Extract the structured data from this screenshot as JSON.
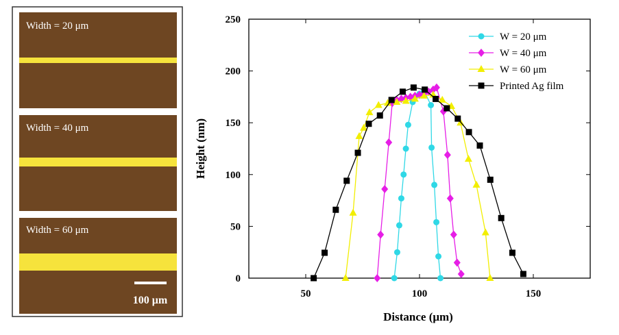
{
  "micrographs": [
    {
      "label": "Width = 20 μm"
    },
    {
      "label": "Width = 40 μm"
    },
    {
      "label": "Width = 60 μm"
    }
  ],
  "scale_bar_label": "100 μm",
  "chart_data": {
    "type": "line",
    "x_label": "Distance (μm)",
    "y_label": "Height (nm)",
    "xlim": [
      25,
      175
    ],
    "xticks": [
      50,
      100,
      150
    ],
    "ylim": [
      0,
      250
    ],
    "yticks": [
      0,
      50,
      100,
      150,
      200,
      250
    ],
    "legend": "upper right",
    "series": [
      {
        "name": "W = 20 μm",
        "color": "#2fd8e6",
        "marker": "circle",
        "x": [
          88.9,
          90.2,
          91.1,
          92,
          93,
          94,
          95,
          97,
          98,
          100,
          102,
          105,
          105.3,
          106.5,
          107.4,
          108.3,
          109.2
        ],
        "values": [
          0,
          25,
          51,
          77,
          100,
          125,
          148,
          170,
          175,
          178,
          181,
          167,
          126,
          90,
          54,
          21,
          0
        ]
      },
      {
        "name": "W = 40 μm",
        "color": "#e61ee6",
        "marker": "diamond",
        "x": [
          81.4,
          82.9,
          84.7,
          86.5,
          88,
          90,
          92,
          94,
          96,
          98,
          100,
          102,
          104,
          106,
          107.5,
          110.5,
          112.3,
          113.5,
          115,
          116.5,
          118.3
        ],
        "values": [
          0,
          42,
          86,
          131,
          169,
          172,
          173,
          174,
          175,
          176,
          177,
          178,
          180,
          182,
          184,
          161,
          119,
          77,
          42,
          15,
          4
        ]
      },
      {
        "name": "W = 60 μm",
        "color": "#f2ee00",
        "marker": "triangle",
        "x": [
          67.5,
          70.8,
          73.5,
          75.5,
          78,
          82,
          86,
          90,
          94,
          98,
          102,
          106,
          110,
          114,
          118,
          121.5,
          125,
          129,
          131
        ],
        "values": [
          0,
          63,
          137,
          145,
          160,
          167,
          169,
          170,
          171,
          173,
          176,
          177,
          172,
          166,
          150,
          115,
          90,
          44,
          0
        ]
      },
      {
        "name": "Printed Ag film",
        "color": "#000000",
        "marker": "square",
        "x": [
          53.5,
          58.3,
          63.2,
          68,
          72.9,
          77.7,
          82.6,
          87.7,
          92.6,
          97.4,
          102.3,
          107.1,
          112,
          116.8,
          121.7,
          126.5,
          131.1,
          135.9,
          140.8,
          145.6
        ],
        "values": [
          0,
          24.5,
          66,
          94,
          121,
          149,
          157,
          172,
          180,
          184,
          182,
          173,
          164,
          154,
          141,
          128,
          95,
          58,
          24.5,
          4
        ]
      }
    ]
  }
}
